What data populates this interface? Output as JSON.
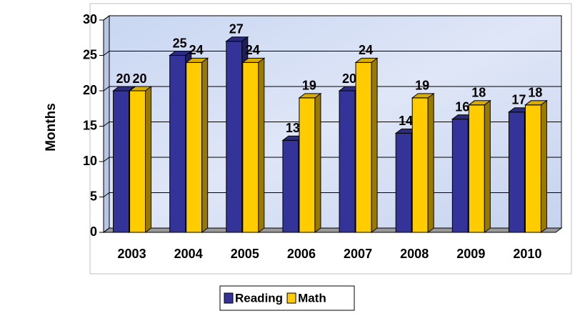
{
  "chart_data": {
    "type": "bar3d",
    "y_label": "Months",
    "categories": [
      "2003",
      "2004",
      "2005",
      "2006",
      "2007",
      "2008",
      "2009",
      "2010"
    ],
    "series": [
      {
        "name": "Reading",
        "color": "#333399",
        "values": [
          20,
          25,
          27,
          13,
          20,
          14,
          16,
          17
        ]
      },
      {
        "name": "Math",
        "color": "#ffcc00",
        "values": [
          20,
          24,
          24,
          19,
          24,
          19,
          18,
          18
        ]
      }
    ],
    "ylim": [
      0,
      30
    ],
    "yticks": [
      0,
      5,
      10,
      15,
      20,
      25,
      30
    ],
    "grid": true,
    "legend": "bottom"
  }
}
